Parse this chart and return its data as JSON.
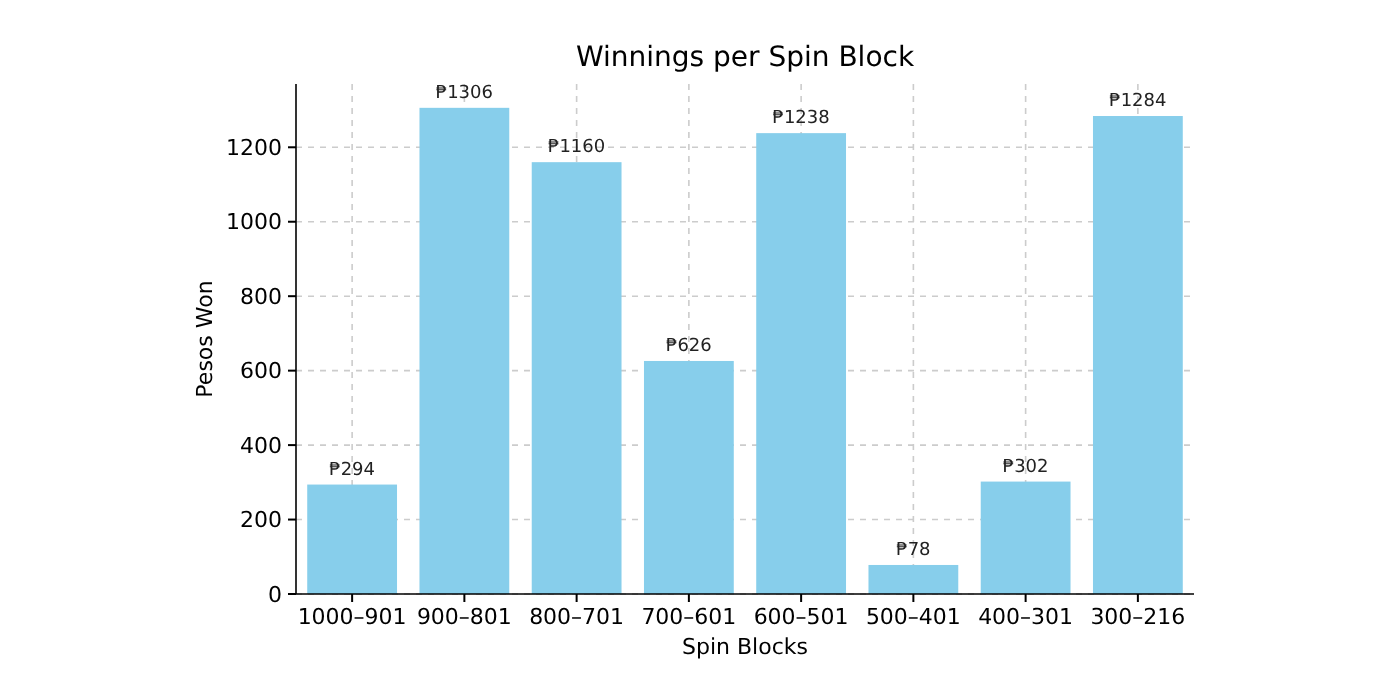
{
  "chart_data": {
    "type": "bar",
    "title": "Winnings per Spin Block",
    "xlabel": "Spin Blocks",
    "ylabel": "Pesos Won",
    "categories": [
      "1000–901",
      "900–801",
      "800–701",
      "700–601",
      "600–501",
      "500–401",
      "400–301",
      "300–216"
    ],
    "values": [
      294,
      1306,
      1160,
      626,
      1238,
      78,
      302,
      1284
    ],
    "value_labels": [
      "₱294",
      "₱1306",
      "₱1160",
      "₱626",
      "₱1238",
      "₱78",
      "₱302",
      "₱1284"
    ],
    "color": "#87ceeb",
    "ylim": [
      0,
      1370
    ],
    "yticks": [
      0,
      200,
      400,
      600,
      800,
      1000,
      1200
    ],
    "grid": true
  }
}
